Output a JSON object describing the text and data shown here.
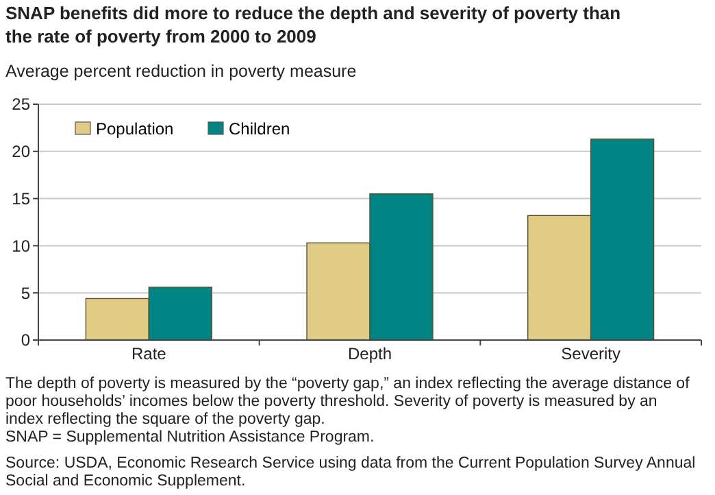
{
  "chart_data": {
    "type": "bar",
    "title": "SNAP benefits did more to reduce the depth and severity of poverty than the rate of poverty from 2000 to 2009",
    "ylabel": "Average percent reduction in poverty measure",
    "categories": [
      "Rate",
      "Depth",
      "Severity"
    ],
    "series": [
      {
        "name": "Population",
        "color": "#e0cc85",
        "values": [
          4.4,
          10.3,
          13.2
        ]
      },
      {
        "name": "Children",
        "color": "#008484",
        "values": [
          5.6,
          15.5,
          21.3
        ]
      }
    ],
    "ylim": [
      0,
      25
    ],
    "yticks": [
      0,
      5,
      10,
      15,
      20,
      25
    ],
    "grid": "y",
    "legend": "top left",
    "annotations": [
      "The depth of poverty is measured by the “poverty gap,” an index reflecting the average distance of poor households’ incomes below the poverty threshold.  Severity of poverty is measured by an index reflecting the square of the poverty gap.",
      "SNAP = Supplemental Nutrition Assistance Program.",
      "Source: USDA, Economic Research Service using data from the Current Population Survey Annual Social and Economic Supplement."
    ]
  }
}
